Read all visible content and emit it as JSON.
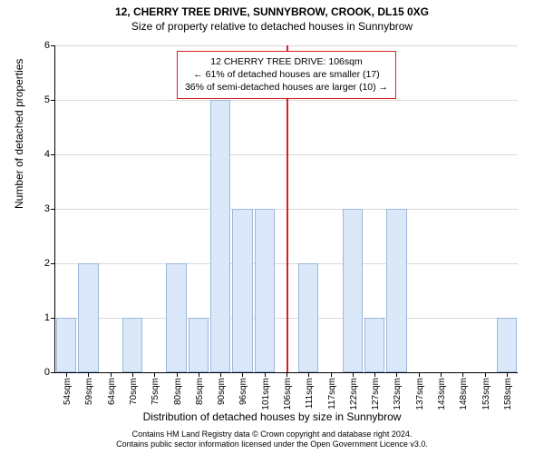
{
  "chart": {
    "type": "bar",
    "title_main": "12, CHERRY TREE DRIVE, SUNNYBROW, CROOK, DL15 0XG",
    "title_sub": "Size of property relative to detached houses in Sunnybrow",
    "title_main_fontsize": 12,
    "title_sub_fontsize": 12,
    "ylabel": "Number of detached properties",
    "xlabel": "Distribution of detached houses by size in Sunnybrow",
    "label_fontsize": 12,
    "tick_fontsize": 10,
    "ylim": [
      0,
      6
    ],
    "yticks": [
      0,
      1,
      2,
      3,
      4,
      5,
      6
    ],
    "xtick_labels": [
      "54sqm",
      "59sqm",
      "64sqm",
      "70sqm",
      "75sqm",
      "80sqm",
      "85sqm",
      "90sqm",
      "96sqm",
      "101sqm",
      "106sqm",
      "111sqm",
      "117sqm",
      "122sqm",
      "127sqm",
      "132sqm",
      "137sqm",
      "143sqm",
      "148sqm",
      "153sqm",
      "158sqm"
    ],
    "values": [
      1,
      2,
      0,
      1,
      0,
      2,
      1,
      5,
      3,
      3,
      0,
      2,
      0,
      3,
      1,
      3,
      0,
      0,
      0,
      0,
      1
    ],
    "bar_fill": "#dbe8f9",
    "bar_border": "#9bb8dd",
    "grid_color": "#d9d9d9",
    "background": "#ffffff",
    "bar_width_ratio": 0.92,
    "reference_line": {
      "index": 10,
      "color": "#d62020",
      "width": 2
    },
    "annotation": {
      "line1": "12 CHERRY TREE DRIVE: 106sqm",
      "line2": "← 61% of detached houses are smaller (17)",
      "line3": "36% of semi-detached houses are larger (10) →",
      "border_color": "#d62020",
      "bg_color": "#ffffff",
      "fontsize": 10.5
    },
    "footer_line1": "Contains HM Land Registry data © Crown copyright and database right 2024.",
    "footer_line2": "Contains public sector information licensed under the Open Government Licence v3.0.",
    "footer_fontsize": 9
  }
}
